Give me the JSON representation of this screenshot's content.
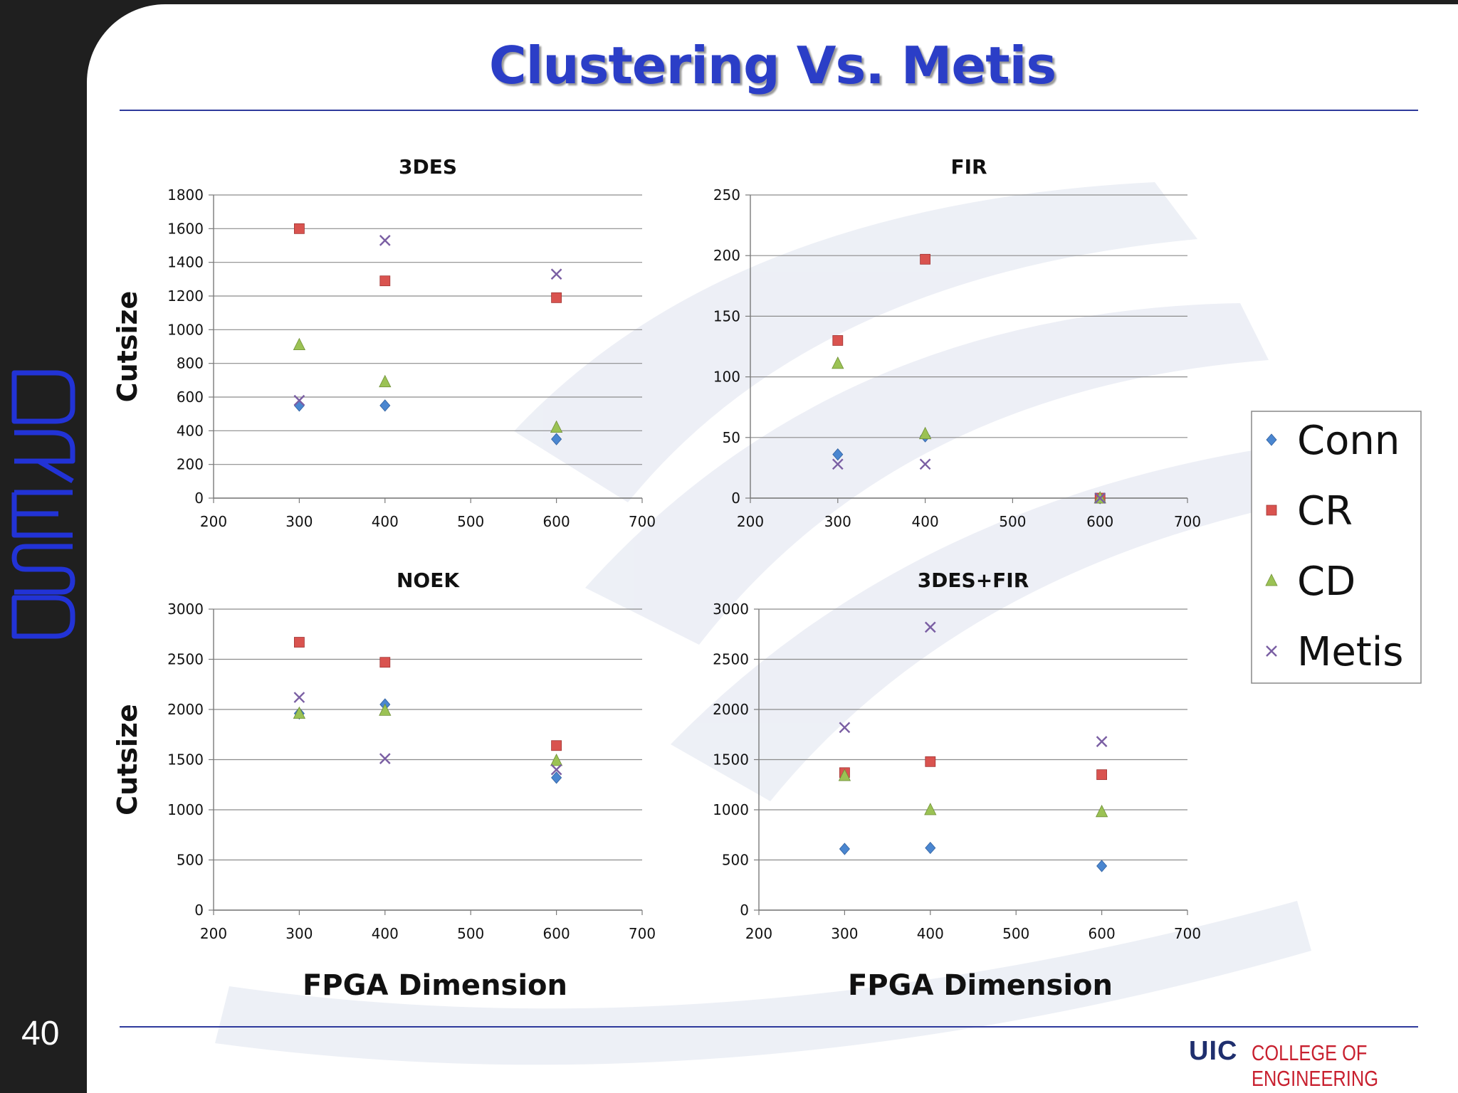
{
  "slide": {
    "title": "Clustering Vs. Metis",
    "number": "40",
    "logo_text": "DRESD",
    "uic_mark": "UIC",
    "uic_line1": "COLLEGE OF",
    "uic_line2": "ENGINEERING"
  },
  "colors": {
    "title": "#2b3ec7",
    "rule": "#2e3a9c",
    "Conn": "#4a86d0",
    "CR": "#d9534f",
    "CD": "#9bc254",
    "Metis": "#7a5ea3"
  },
  "legend": {
    "placement": "right",
    "entries": [
      "Conn",
      "CR",
      "CD",
      "Metis"
    ]
  },
  "chart_data": [
    {
      "type": "scatter",
      "title": "3DES",
      "xlabel": "",
      "ylabel": "Cutsize",
      "xlim": [
        200,
        700
      ],
      "ylim": [
        0,
        1800
      ],
      "xticks": [
        200,
        300,
        400,
        500,
        600,
        700
      ],
      "yticks": [
        0,
        200,
        400,
        600,
        800,
        1000,
        1200,
        1400,
        1600,
        1800
      ],
      "grid": "horizontal",
      "series": [
        {
          "name": "Conn",
          "marker": "diamond",
          "points": [
            [
              300,
              550
            ],
            [
              400,
              550
            ],
            [
              600,
              350
            ]
          ]
        },
        {
          "name": "CR",
          "marker": "square",
          "points": [
            [
              300,
              1600
            ],
            [
              400,
              1290
            ],
            [
              600,
              1190
            ]
          ]
        },
        {
          "name": "CD",
          "marker": "triangle",
          "points": [
            [
              300,
              910
            ],
            [
              400,
              690
            ],
            [
              600,
              420
            ]
          ]
        },
        {
          "name": "Metis",
          "marker": "x",
          "points": [
            [
              300,
              580
            ],
            [
              400,
              1530
            ],
            [
              600,
              1330
            ]
          ]
        }
      ]
    },
    {
      "type": "scatter",
      "title": "FIR",
      "xlabel": "",
      "ylabel": "",
      "xlim": [
        200,
        700
      ],
      "ylim": [
        0,
        250
      ],
      "xticks": [
        200,
        300,
        400,
        500,
        600,
        700
      ],
      "yticks": [
        0,
        50,
        100,
        150,
        200,
        250
      ],
      "grid": "horizontal",
      "series": [
        {
          "name": "Conn",
          "marker": "diamond",
          "points": [
            [
              300,
              36
            ],
            [
              400,
              51
            ],
            [
              600,
              0
            ]
          ]
        },
        {
          "name": "CR",
          "marker": "square",
          "points": [
            [
              300,
              130
            ],
            [
              400,
              197
            ],
            [
              600,
              0
            ]
          ]
        },
        {
          "name": "CD",
          "marker": "triangle",
          "points": [
            [
              300,
              111
            ],
            [
              400,
              53
            ],
            [
              600,
              0
            ]
          ]
        },
        {
          "name": "Metis",
          "marker": "x",
          "points": [
            [
              300,
              28
            ],
            [
              400,
              28
            ],
            [
              600,
              0
            ]
          ]
        }
      ]
    },
    {
      "type": "scatter",
      "title": "NOEK",
      "xlabel": "FPGA Dimension",
      "ylabel": "Cutsize",
      "xlim": [
        200,
        700
      ],
      "ylim": [
        0,
        3000
      ],
      "xticks": [
        200,
        300,
        400,
        500,
        600,
        700
      ],
      "yticks": [
        0,
        500,
        1000,
        1500,
        2000,
        2500,
        3000
      ],
      "grid": "horizontal",
      "series": [
        {
          "name": "Conn",
          "marker": "diamond",
          "points": [
            [
              300,
              1960
            ],
            [
              400,
              2050
            ],
            [
              600,
              1320
            ]
          ]
        },
        {
          "name": "CR",
          "marker": "square",
          "points": [
            [
              300,
              2670
            ],
            [
              400,
              2470
            ],
            [
              600,
              1640
            ]
          ]
        },
        {
          "name": "CD",
          "marker": "triangle",
          "points": [
            [
              300,
              1960
            ],
            [
              400,
              1990
            ],
            [
              600,
              1490
            ]
          ]
        },
        {
          "name": "Metis",
          "marker": "x",
          "points": [
            [
              300,
              2120
            ],
            [
              400,
              1510
            ],
            [
              600,
              1400
            ]
          ]
        }
      ]
    },
    {
      "type": "scatter",
      "title": "3DES+FIR",
      "xlabel": "FPGA Dimension",
      "ylabel": "",
      "xlim": [
        200,
        700
      ],
      "ylim": [
        0,
        3000
      ],
      "xticks": [
        200,
        300,
        400,
        500,
        600,
        700
      ],
      "yticks": [
        0,
        500,
        1000,
        1500,
        2000,
        2500,
        3000
      ],
      "grid": "horizontal",
      "series": [
        {
          "name": "Conn",
          "marker": "diamond",
          "points": [
            [
              300,
              610
            ],
            [
              400,
              620
            ],
            [
              600,
              440
            ]
          ]
        },
        {
          "name": "CR",
          "marker": "square",
          "points": [
            [
              300,
              1370
            ],
            [
              400,
              1480
            ],
            [
              600,
              1350
            ]
          ]
        },
        {
          "name": "CD",
          "marker": "triangle",
          "points": [
            [
              300,
              1340
            ],
            [
              400,
              1000
            ],
            [
              600,
              980
            ]
          ]
        },
        {
          "name": "Metis",
          "marker": "x",
          "points": [
            [
              300,
              1820
            ],
            [
              400,
              2820
            ],
            [
              600,
              1680
            ]
          ]
        }
      ]
    }
  ]
}
